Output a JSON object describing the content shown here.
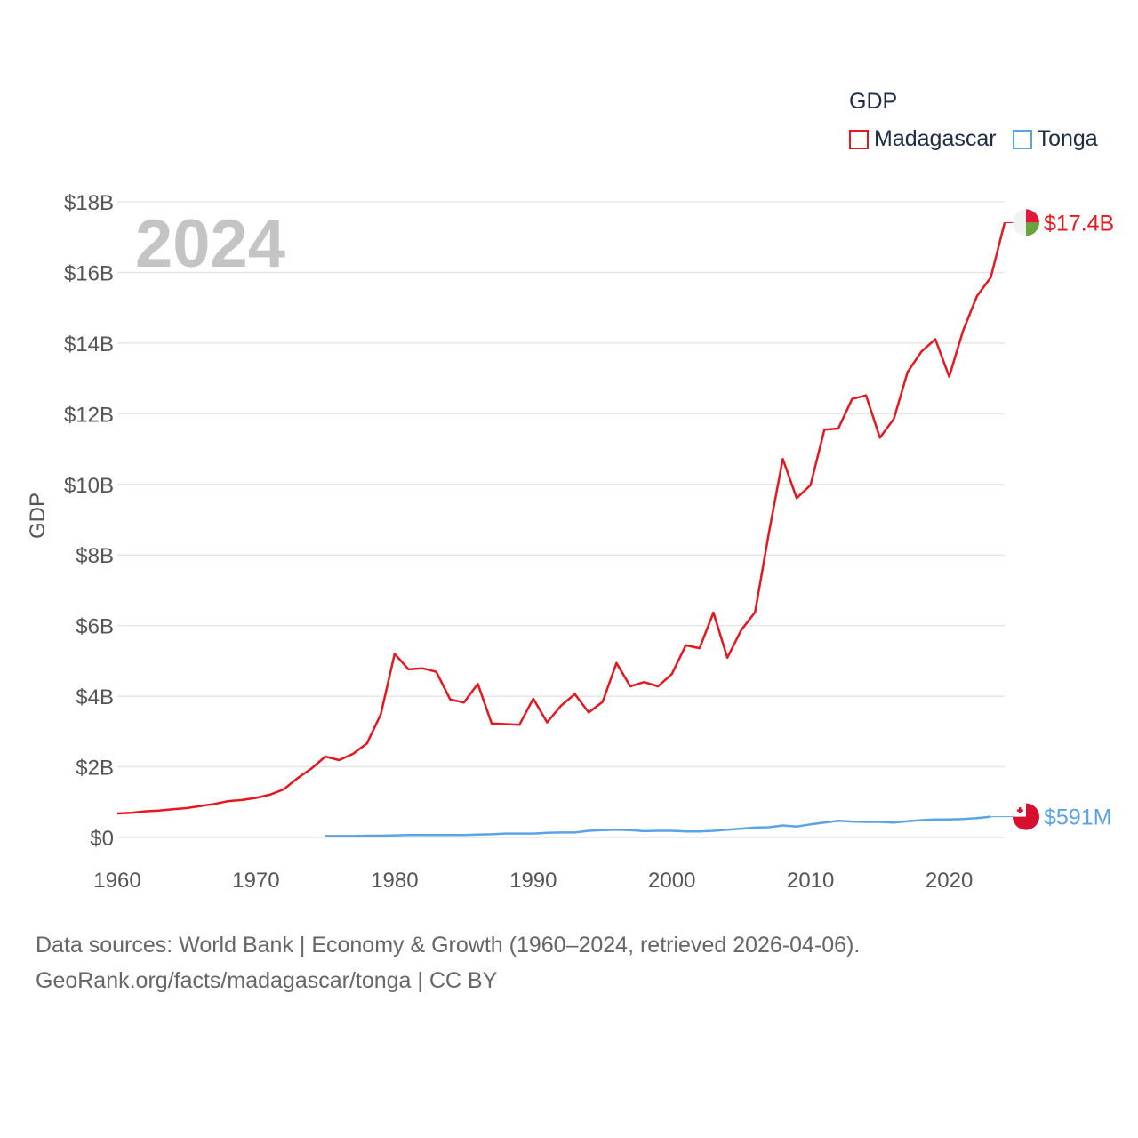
{
  "legend": {
    "title": "GDP",
    "items": [
      {
        "label": "Madagascar",
        "color": "#e8161f"
      },
      {
        "label": "Tonga",
        "color": "#5aa4e6"
      }
    ]
  },
  "year_label": "2024",
  "source": {
    "line1": "Data sources: World Bank | Economy & Growth (1960–2024, retrieved 2026-04-06).",
    "line2": "GeoRank.org/facts/madagascar/tonga | CC BY"
  },
  "chart_data": {
    "type": "line",
    "title": "GDP",
    "xlabel": "",
    "ylabel": "GDP",
    "xlim": [
      1960,
      2024
    ],
    "ylim": [
      0,
      18
    ],
    "x_ticks": [
      1960,
      1970,
      1980,
      1990,
      2000,
      2010,
      2020
    ],
    "x_tick_labels": [
      "1960",
      "1970",
      "1980",
      "1990",
      "2000",
      "2010",
      "2020"
    ],
    "y_ticks": [
      0,
      2,
      4,
      6,
      8,
      10,
      12,
      14,
      16,
      18
    ],
    "y_tick_labels": [
      "$0",
      "$2B",
      "$4B",
      "$6B",
      "$8B",
      "$10B",
      "$12B",
      "$14B",
      "$16B",
      "$18B"
    ],
    "grid": true,
    "legend_position": "top-right",
    "unit": "billion USD",
    "series": [
      {
        "name": "Madagascar",
        "color": "#e8161f",
        "end_label": "$17.4B",
        "x": [
          1960,
          1961,
          1962,
          1963,
          1964,
          1965,
          1966,
          1967,
          1968,
          1969,
          1970,
          1971,
          1972,
          1973,
          1974,
          1975,
          1976,
          1977,
          1978,
          1979,
          1980,
          1981,
          1982,
          1983,
          1984,
          1985,
          1986,
          1987,
          1988,
          1989,
          1990,
          1991,
          1992,
          1993,
          1994,
          1995,
          1996,
          1997,
          1998,
          1999,
          2000,
          2001,
          2002,
          2003,
          2004,
          2005,
          2006,
          2007,
          2008,
          2009,
          2010,
          2011,
          2012,
          2013,
          2014,
          2015,
          2016,
          2017,
          2018,
          2019,
          2020,
          2021,
          2022,
          2023,
          2024
        ],
        "values": [
          0.68,
          0.7,
          0.74,
          0.76,
          0.8,
          0.83,
          0.89,
          0.95,
          1.03,
          1.06,
          1.12,
          1.21,
          1.36,
          1.68,
          1.95,
          2.29,
          2.19,
          2.37,
          2.66,
          3.49,
          5.2,
          4.76,
          4.79,
          4.69,
          3.91,
          3.82,
          4.35,
          3.23,
          3.21,
          3.19,
          3.93,
          3.26,
          3.73,
          4.06,
          3.54,
          3.84,
          4.94,
          4.28,
          4.4,
          4.28,
          4.63,
          5.44,
          5.36,
          6.37,
          5.09,
          5.87,
          6.38,
          8.63,
          10.72,
          9.61,
          9.98,
          11.55,
          11.58,
          12.42,
          12.52,
          11.32,
          11.85,
          13.18,
          13.76,
          14.11,
          13.05,
          14.35,
          15.33,
          15.86,
          17.41
        ]
      },
      {
        "name": "Tonga",
        "color": "#5aa4e6",
        "end_label": "$591M",
        "x": [
          1975,
          1976,
          1977,
          1978,
          1979,
          1980,
          1981,
          1982,
          1983,
          1984,
          1985,
          1986,
          1987,
          1988,
          1989,
          1990,
          1991,
          1992,
          1993,
          1994,
          1995,
          1996,
          1997,
          1998,
          1999,
          2000,
          2001,
          2002,
          2003,
          2004,
          2005,
          2006,
          2007,
          2008,
          2009,
          2010,
          2011,
          2012,
          2013,
          2014,
          2015,
          2016,
          2017,
          2018,
          2019,
          2020,
          2021,
          2022,
          2023
        ],
        "values": [
          0.04,
          0.04,
          0.04,
          0.05,
          0.05,
          0.06,
          0.07,
          0.07,
          0.07,
          0.07,
          0.07,
          0.08,
          0.09,
          0.11,
          0.11,
          0.11,
          0.13,
          0.14,
          0.14,
          0.19,
          0.21,
          0.22,
          0.21,
          0.18,
          0.19,
          0.19,
          0.17,
          0.17,
          0.19,
          0.22,
          0.25,
          0.28,
          0.29,
          0.34,
          0.31,
          0.37,
          0.42,
          0.47,
          0.45,
          0.44,
          0.44,
          0.42,
          0.46,
          0.49,
          0.51,
          0.51,
          0.52,
          0.55,
          0.59
        ]
      }
    ]
  }
}
